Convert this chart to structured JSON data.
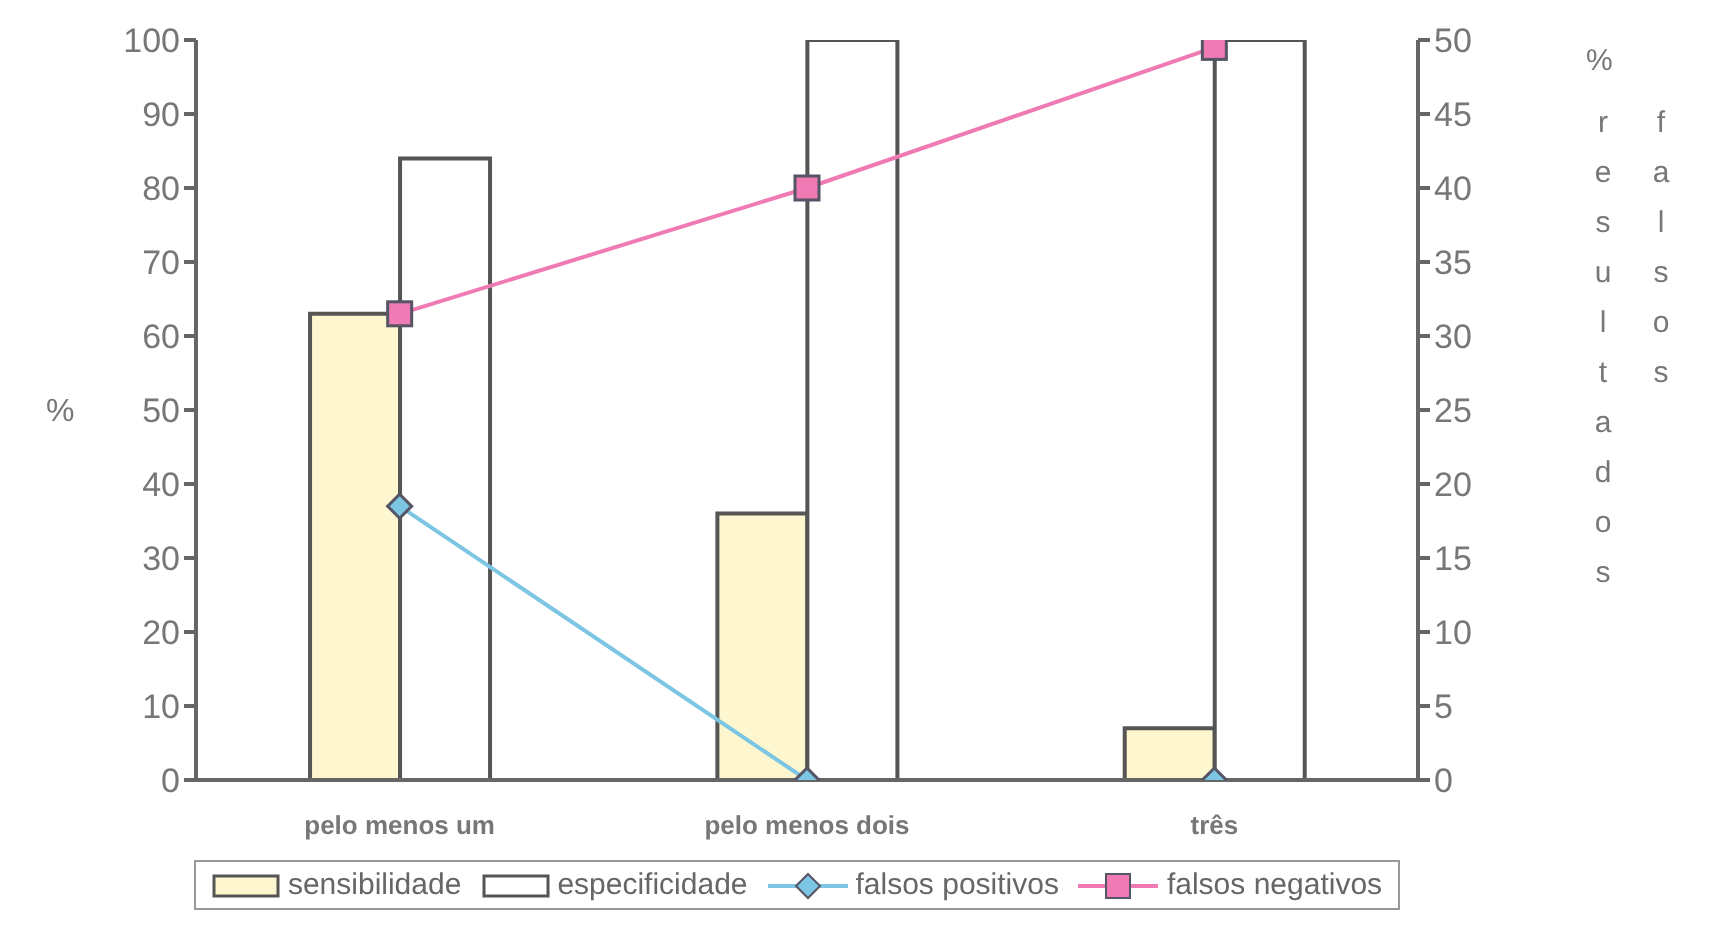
{
  "chart_data": {
    "type": "bar",
    "categories": [
      "pelo menos um",
      "pelo menos dois",
      "três"
    ],
    "series": [
      {
        "name": "sensibilidade",
        "color": "#fdf6cf",
        "values": [
          63,
          36,
          7
        ]
      },
      {
        "name": "especificidade",
        "color": "#ffffff",
        "values": [
          84,
          100,
          100
        ]
      },
      {
        "name": "falsos positivos",
        "type": "line",
        "axis": "y2",
        "color": "#7cc6e4",
        "marker": "diamond",
        "values": [
          18.5,
          0,
          0
        ]
      },
      {
        "name": "falsos negativos",
        "type": "line",
        "axis": "y2",
        "color": "#f07ab4",
        "marker": "square",
        "values": [
          31.5,
          40,
          49.5
        ]
      }
    ],
    "ylabel": "%",
    "y2label": "% resultados falsos",
    "ylim": [
      0,
      100
    ],
    "yticks": [
      0,
      10,
      20,
      30,
      40,
      50,
      60,
      70,
      80,
      90,
      100
    ],
    "y2lim": [
      0,
      50
    ],
    "y2ticks": [
      0,
      5,
      10,
      15,
      20,
      25,
      30,
      35,
      40,
      45,
      50
    ],
    "grid": false,
    "legend": "bottom"
  }
}
